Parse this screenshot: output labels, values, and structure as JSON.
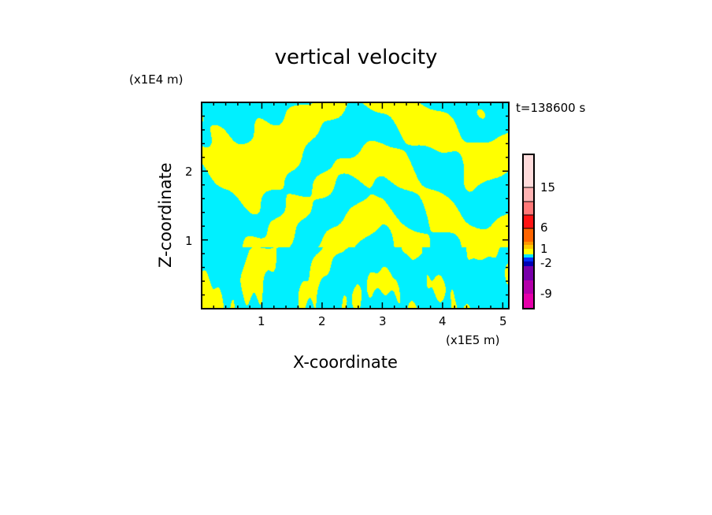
{
  "chart_data": {
    "type": "heatmap",
    "title": "vertical velocity",
    "xlabel": "X-coordinate",
    "ylabel": "Z-coordinate",
    "x_unit": "(x1E5 m)",
    "y_unit": "(x1E4 m)",
    "time_label": "t=138600 s",
    "xlim": [
      0,
      5.1
    ],
    "ylim": [
      0,
      3.0
    ],
    "x_ticks": [
      "1",
      "2",
      "3",
      "4",
      "5"
    ],
    "y_ticks": [
      "1",
      "2"
    ],
    "dominant_colors": {
      "positive_small": "#ffff00",
      "negative_small": "#00f0ff"
    },
    "colorbar": {
      "colors": [
        "#e600aa",
        "#b400aa",
        "#7800aa",
        "#0000b4",
        "#0032ff",
        "#00e6ff",
        "#ffff00",
        "#ffc800",
        "#ff9600",
        "#ff6400",
        "#ff1414",
        "#ff7878",
        "#ffb4b4",
        "#ffdcdc"
      ],
      "tick_labels": [
        "-9",
        "-2",
        "1",
        "6",
        "15"
      ]
    }
  }
}
